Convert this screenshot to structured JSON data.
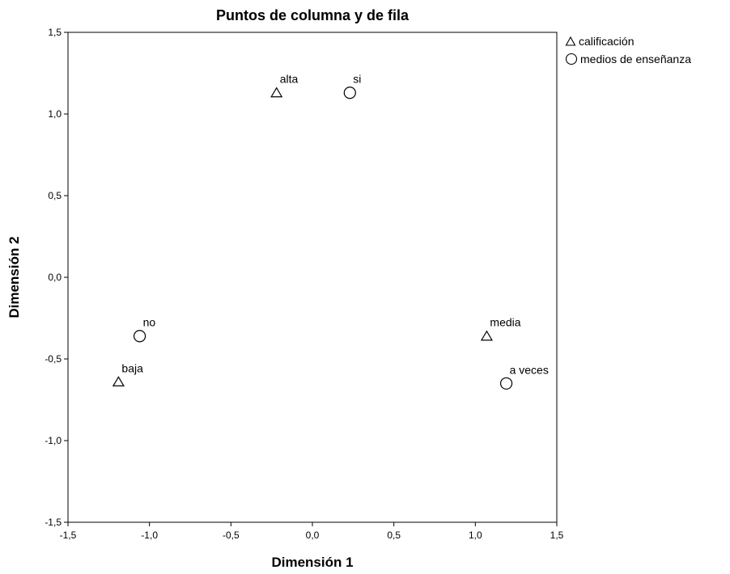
{
  "chart_data": {
    "type": "scatter",
    "title": "Puntos de columna y de fila",
    "xlabel": "Dimensión 1",
    "ylabel": "Dimensión 2",
    "xlim": [
      -1.5,
      1.5
    ],
    "ylim": [
      -1.5,
      1.5
    ],
    "x_ticks": [
      "-1,5",
      "-1,0",
      "-0,5",
      "0,0",
      "0,5",
      "1,0",
      "1,5"
    ],
    "y_ticks": [
      "1,5",
      "1,0",
      "0,5",
      "0,0",
      "-0,5",
      "-1,0",
      "-1,5"
    ],
    "grid": false,
    "legend_position": "top-right",
    "series": [
      {
        "name": "calificación",
        "marker": "triangle",
        "points": [
          {
            "label": "alta",
            "x": -0.22,
            "y": 1.13
          },
          {
            "label": "media",
            "x": 1.07,
            "y": -0.36
          },
          {
            "label": "baja",
            "x": -1.19,
            "y": -0.64
          }
        ]
      },
      {
        "name": "medios de enseñanza",
        "marker": "circle",
        "points": [
          {
            "label": "si",
            "x": 0.23,
            "y": 1.13
          },
          {
            "label": "no",
            "x": -1.06,
            "y": -0.36
          },
          {
            "label": "a veces",
            "x": 1.19,
            "y": -0.65
          }
        ]
      }
    ]
  }
}
